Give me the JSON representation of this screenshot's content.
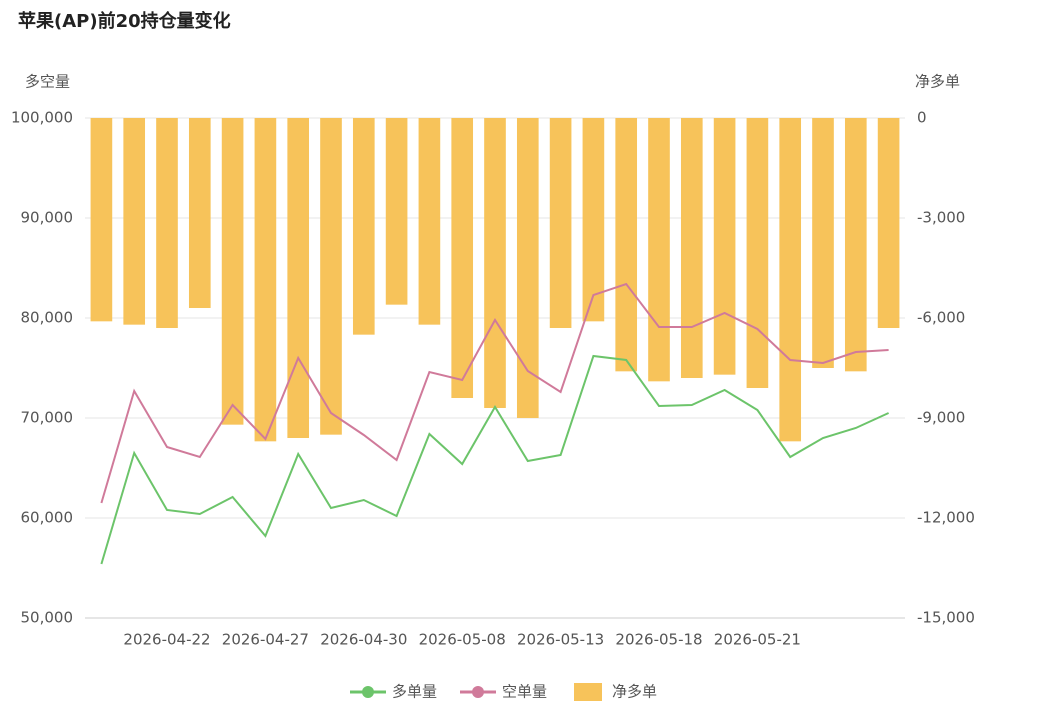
{
  "chart_data": {
    "type": "bar-line",
    "title": "苹果(AP)前20持仓量变化",
    "y_label": "多空量",
    "y2_label": "净多单",
    "categories": [
      null,
      null,
      "2026-04-22",
      null,
      null,
      "2026-04-27",
      null,
      null,
      "2026-04-30",
      null,
      null,
      "2026-05-08",
      null,
      null,
      "2026-05-13",
      null,
      null,
      "2026-05-18",
      null,
      null,
      "2026-05-21",
      null,
      null,
      null,
      null
    ],
    "ylim": [
      50000,
      100000
    ],
    "yticks": [
      {
        "value": 50000,
        "label": "50,000"
      },
      {
        "value": 60000,
        "label": "60,000"
      },
      {
        "value": 70000,
        "label": "70,000"
      },
      {
        "value": 80000,
        "label": "80,000"
      },
      {
        "value": 90000,
        "label": "90,000"
      },
      {
        "value": 100000,
        "label": "100,000"
      }
    ],
    "y2lim": [
      -15000,
      0
    ],
    "y2ticks": [
      {
        "value": -15000,
        "label": "-15,000"
      },
      {
        "value": -12000,
        "label": "-12,000"
      },
      {
        "value": -9000,
        "label": "-9,000"
      },
      {
        "value": -6000,
        "label": "-6,000"
      },
      {
        "value": -3000,
        "label": "-3,000"
      },
      0
    ],
    "grid": true,
    "series": [
      {
        "name": "多单量",
        "kind": "line",
        "color": "#6cc46a",
        "values": [
          55400,
          66500,
          60800,
          60400,
          62100,
          58200,
          66400,
          61000,
          61800,
          60200,
          68400,
          65400,
          71100,
          65700,
          66300,
          76200,
          75800,
          71200,
          71300,
          72800,
          70800,
          66100,
          68000,
          69000,
          70500
        ]
      },
      {
        "name": "空单量",
        "kind": "line",
        "color": "#d07a9a",
        "values": [
          61500,
          72700,
          67100,
          66100,
          71300,
          67900,
          76000,
          70500,
          68300,
          65800,
          74600,
          73800,
          79800,
          74700,
          72600,
          82300,
          83400,
          79100,
          79100,
          80500,
          78900,
          75800,
          75500,
          76600,
          76800
        ]
      },
      {
        "name": "净多单",
        "kind": "bar",
        "axis": "y2",
        "color": "#f7c35a",
        "values": [
          -6100,
          -6200,
          -6300,
          -5700,
          -9200,
          -9700,
          -9600,
          -9500,
          -6500,
          -5600,
          -6200,
          -8400,
          -8700,
          -9000,
          -6300,
          -6100,
          -7600,
          -7900,
          -7800,
          -7700,
          -8100,
          -9700,
          -7500,
          -7600,
          -6300
        ]
      }
    ]
  }
}
